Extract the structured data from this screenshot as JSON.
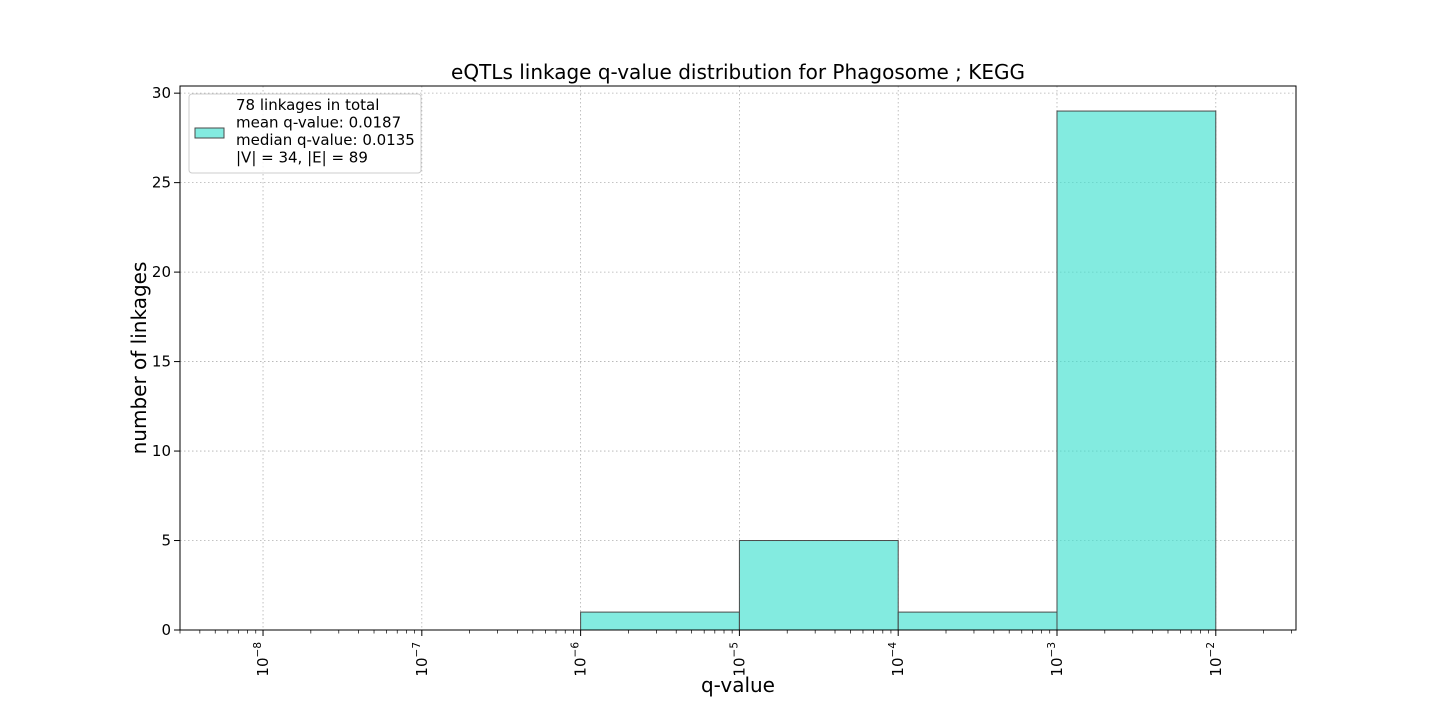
{
  "chart_data": {
    "type": "bar",
    "title": "eQTLs linkage q-value distribution for Phagosome ; KEGG",
    "xlabel": "q-value",
    "ylabel": "number of linkages",
    "xscale": "log",
    "xlim": [
      3e-09,
      0.032
    ],
    "ylim": [
      0,
      30.4
    ],
    "grid": true,
    "legend_position": "upper-left",
    "bar_color": "#40E0D0",
    "bar_edge_color": "#4a4a4a",
    "x_ticks": [
      {
        "value": 1e-08,
        "label": "10",
        "exp": "−8"
      },
      {
        "value": 1e-07,
        "label": "10",
        "exp": "−7"
      },
      {
        "value": 1e-06,
        "label": "10",
        "exp": "−6"
      },
      {
        "value": 1e-05,
        "label": "10",
        "exp": "−5"
      },
      {
        "value": 0.0001,
        "label": "10",
        "exp": "−4"
      },
      {
        "value": 0.001,
        "label": "10",
        "exp": "−3"
      },
      {
        "value": 0.01,
        "label": "10",
        "exp": "−2"
      }
    ],
    "y_ticks": [
      0,
      5,
      10,
      15,
      20,
      25,
      30
    ],
    "bins": [
      {
        "from": 1e-08,
        "to": 1e-07,
        "count": 0
      },
      {
        "from": 1e-07,
        "to": 1e-06,
        "count": 0
      },
      {
        "from": 1e-06,
        "to": 1e-05,
        "count": 1
      },
      {
        "from": 1e-05,
        "to": 0.0001,
        "count": 5
      },
      {
        "from": 0.0001,
        "to": 0.001,
        "count": 1
      },
      {
        "from": 0.001,
        "to": 0.01,
        "count": 29
      }
    ],
    "legend": {
      "lines": [
        "78 linkages in total",
        "mean q-value: 0.0187",
        "median q-value: 0.0135",
        "|V| = 34, |E| = 89"
      ]
    }
  }
}
